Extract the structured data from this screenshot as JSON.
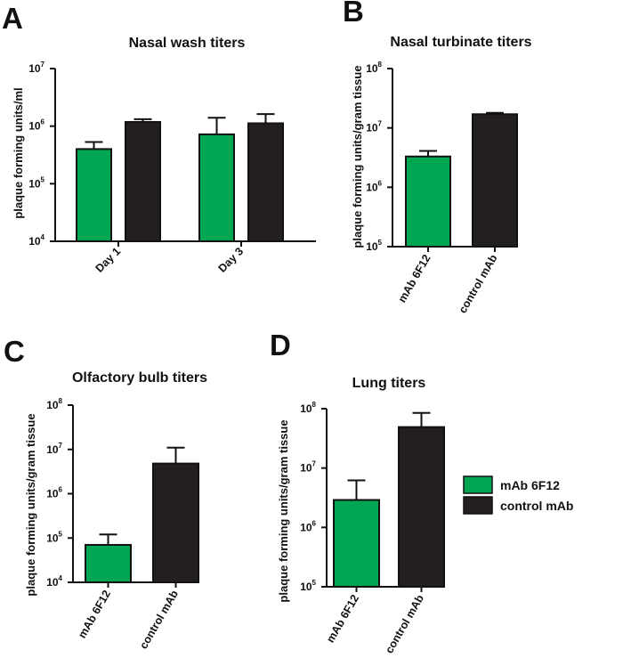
{
  "colors": {
    "mab": "#00a651",
    "control": "#231f20"
  },
  "legend": [
    {
      "key": "mab",
      "label": "mAb 6F12"
    },
    {
      "key": "control",
      "label": "control mAb"
    }
  ],
  "panels": [
    {
      "label": "A",
      "title": "Nasal wash titers",
      "ylabel": "plaque forming units/ml"
    },
    {
      "label": "B",
      "title": "Nasal turbinate titers",
      "ylabel": "plaque forming units/gram tissue"
    },
    {
      "label": "C",
      "title": "Olfactory bulb titers",
      "ylabel": "plaque forming units/gram tissue"
    },
    {
      "label": "D",
      "title": "Lung titers",
      "ylabel": "plaque forming units/gram tissue"
    }
  ],
  "chart_data": [
    {
      "type": "bar",
      "scale": "log",
      "title": "Nasal wash titers",
      "ylabel": "plaque forming units/ml",
      "ylim_exp": [
        4,
        7
      ],
      "categories": [
        "Day 1",
        "Day 3"
      ],
      "series": [
        {
          "name": "mAb 6F12",
          "values": [
            400000,
            720000
          ],
          "err_top": [
            530000,
            1400000
          ]
        },
        {
          "name": "control mAb",
          "values": [
            1180000,
            1120000
          ],
          "err_top": [
            1320000,
            1620000
          ]
        }
      ]
    },
    {
      "type": "bar",
      "scale": "log",
      "title": "Nasal turbinate titers",
      "ylabel": "plaque forming units/gram tissue",
      "ylim_exp": [
        5,
        8
      ],
      "categories": [
        "mAb 6F12",
        "control mAb"
      ],
      "values": [
        3300000,
        17000000
      ],
      "err_top": [
        4100000,
        17900000
      ]
    },
    {
      "type": "bar",
      "scale": "log",
      "title": "Olfactory bulb titers",
      "ylabel": "plaque forming units/gram tissue",
      "ylim_exp": [
        4,
        8
      ],
      "categories": [
        "mAb 6F12",
        "control mAb"
      ],
      "values": [
        70000,
        4800000
      ],
      "err_top": [
        120000,
        11000000
      ]
    },
    {
      "type": "bar",
      "scale": "log",
      "title": "Lung titers",
      "ylabel": "plaque forming units/gram tissue",
      "ylim_exp": [
        5,
        8
      ],
      "categories": [
        "mAb 6F12",
        "control mAb"
      ],
      "values": [
        2900000,
        49000000
      ],
      "err_top": [
        6200000,
        85000000
      ]
    }
  ]
}
